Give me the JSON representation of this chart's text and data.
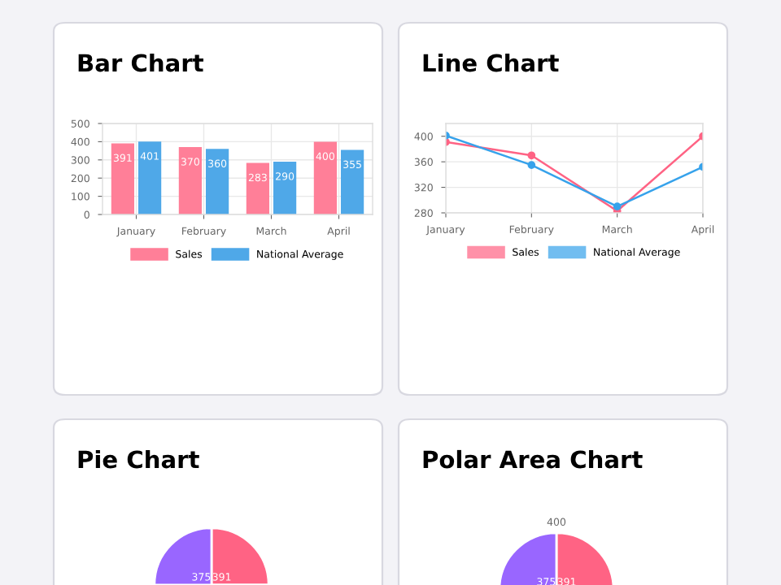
{
  "chart_data": [
    {
      "type": "bar",
      "title": "Bar Chart",
      "categories": [
        "January",
        "February",
        "March",
        "April"
      ],
      "series": [
        {
          "name": "Sales",
          "color": "#ff7f98",
          "values": [
            391,
            370,
            283,
            400
          ]
        },
        {
          "name": "National Average",
          "color": "#4fa8e8",
          "values": [
            401,
            360,
            290,
            355
          ]
        }
      ],
      "ylim": [
        0,
        500
      ],
      "yticks": [
        0,
        100,
        200,
        300,
        400,
        500
      ],
      "grid": true,
      "legend": "bottom",
      "data_labels": true
    },
    {
      "type": "line",
      "title": "Line Chart",
      "categories": [
        "January",
        "February",
        "March",
        "April"
      ],
      "series": [
        {
          "name": "Sales",
          "color": "#ff6384",
          "values": [
            391,
            370,
            283,
            400
          ]
        },
        {
          "name": "National Average",
          "color": "#36a2eb",
          "values": [
            401,
            355,
            290,
            352
          ]
        }
      ],
      "ylim": [
        280,
        420
      ],
      "yticks": [
        280,
        320,
        360,
        400
      ],
      "grid": true,
      "legend": "bottom",
      "marker": "circle"
    },
    {
      "type": "other",
      "title": "Pie Chart",
      "annotations": [
        "375",
        "391"
      ]
    },
    {
      "type": "other",
      "title": "Polar Area Chart",
      "annotations": [
        "400",
        "375",
        "391"
      ]
    }
  ]
}
